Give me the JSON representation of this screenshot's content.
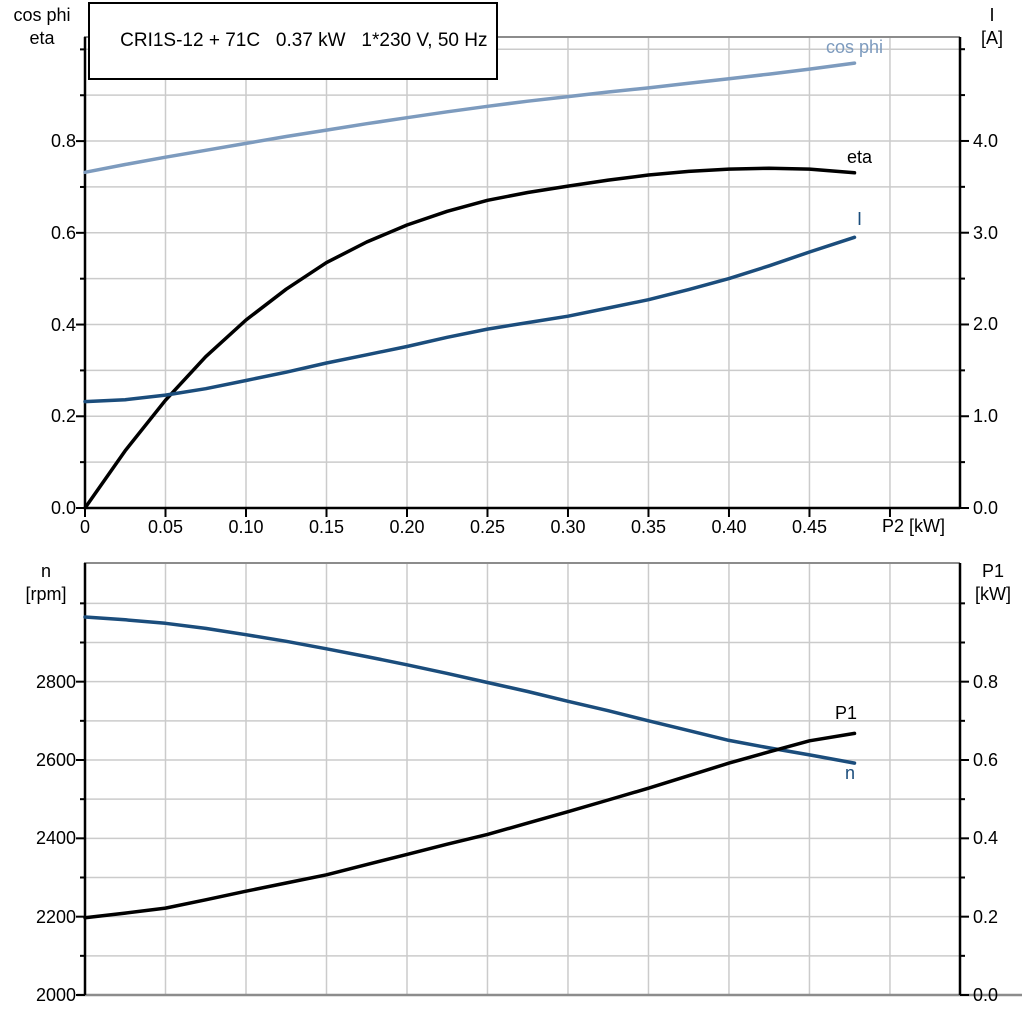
{
  "title": {
    "text": "CRI1S-12 + 71C   0.37 kW   1*230 V, 50 Hz"
  },
  "colors": {
    "curve_black": "#000000",
    "curve_dark_blue": "#1b4d7c",
    "curve_light_blue": "#7d9bbe",
    "grid": "#cbcbcb",
    "frame_gray": "#8c8c8c",
    "axis_black": "#000000",
    "background": "#ffffff"
  },
  "chart_data": [
    {
      "type": "line",
      "title": "",
      "grid": {
        "on": true,
        "x_values": [
          0.05,
          0.1,
          0.15,
          0.2,
          0.25,
          0.3,
          0.35,
          0.4,
          0.45,
          0.5
        ],
        "right_values": [
          0.5,
          1.0,
          1.5,
          2.0,
          2.5,
          3.0,
          3.5,
          4.0,
          4.5,
          5.0
        ]
      },
      "x_axis": {
        "label": "P2 [kW]",
        "min": 0,
        "max": 0.5435,
        "tick_values": [
          0,
          0.05,
          0.1,
          0.15,
          0.2,
          0.25,
          0.3,
          0.35,
          0.4,
          0.45,
          0.5
        ],
        "tick_labels": [
          "0",
          "0.05",
          "0.10",
          "0.15",
          "0.20",
          "0.25",
          "0.30",
          "0.35",
          "0.40",
          "0.45"
        ]
      },
      "left_axis": {
        "header_line1": "cos phi",
        "header_line2": "eta",
        "min": 0,
        "max": 1.027,
        "major_ticks": [
          0,
          0.2,
          0.4,
          0.6,
          0.8
        ],
        "major_labels": [
          "0.0",
          "0.2",
          "0.4",
          "0.6",
          "0.8"
        ],
        "minor_ticks": [
          0.1,
          0.3,
          0.5,
          0.7,
          0.9,
          1.0
        ]
      },
      "right_axis": {
        "header_line1": "I",
        "header_line2": "[A]",
        "min": 0,
        "max": 5.133,
        "major_ticks": [
          0,
          1,
          2,
          3,
          4
        ],
        "major_labels": [
          "0.0",
          "1.0",
          "2.0",
          "3.0",
          "4.0"
        ],
        "minor_ticks": [
          0.5,
          1.5,
          2.5,
          3.5,
          4.5,
          5.0
        ]
      },
      "series": [
        {
          "name": "cos phi",
          "label": "cos phi",
          "axis": "left",
          "color": "#7d9bbe",
          "x": [
            0,
            0.025,
            0.05,
            0.075,
            0.1,
            0.125,
            0.15,
            0.175,
            0.2,
            0.225,
            0.25,
            0.275,
            0.3,
            0.325,
            0.35,
            0.375,
            0.4,
            0.425,
            0.45,
            0.478
          ],
          "y": [
            0.732,
            0.749,
            0.765,
            0.78,
            0.795,
            0.81,
            0.824,
            0.838,
            0.851,
            0.864,
            0.876,
            0.887,
            0.897,
            0.907,
            0.916,
            0.926,
            0.936,
            0.946,
            0.957,
            0.97
          ]
        },
        {
          "name": "eta",
          "label": "eta",
          "axis": "left",
          "color": "#000000",
          "x": [
            0,
            0.025,
            0.05,
            0.075,
            0.1,
            0.125,
            0.15,
            0.175,
            0.2,
            0.225,
            0.25,
            0.275,
            0.3,
            0.325,
            0.35,
            0.375,
            0.4,
            0.425,
            0.45,
            0.478
          ],
          "y": [
            0.0,
            0.125,
            0.235,
            0.33,
            0.41,
            0.477,
            0.535,
            0.58,
            0.617,
            0.647,
            0.671,
            0.688,
            0.702,
            0.715,
            0.726,
            0.734,
            0.739,
            0.741,
            0.739,
            0.731
          ]
        },
        {
          "name": "I",
          "label": "I",
          "axis": "right",
          "color": "#1b4d7c",
          "x": [
            0,
            0.025,
            0.05,
            0.075,
            0.1,
            0.125,
            0.15,
            0.175,
            0.2,
            0.225,
            0.25,
            0.275,
            0.3,
            0.325,
            0.35,
            0.375,
            0.4,
            0.425,
            0.45,
            0.478
          ],
          "y": [
            1.16,
            1.18,
            1.23,
            1.3,
            1.39,
            1.48,
            1.58,
            1.67,
            1.76,
            1.86,
            1.95,
            2.02,
            2.09,
            2.18,
            2.27,
            2.38,
            2.5,
            2.64,
            2.79,
            2.95
          ]
        }
      ]
    },
    {
      "type": "line",
      "title": "",
      "grid": {
        "on": true,
        "x_values": [
          0.05,
          0.1,
          0.15,
          0.2,
          0.25,
          0.3,
          0.35,
          0.4,
          0.45,
          0.5
        ],
        "right_values": [
          0.1,
          0.2,
          0.3,
          0.4,
          0.5,
          0.6,
          0.7,
          0.8,
          0.9,
          1.0
        ]
      },
      "x_axis": {
        "label": "",
        "min": 0,
        "max": 0.5435,
        "tick_values": [],
        "tick_labels": []
      },
      "left_axis": {
        "header_line1": "n",
        "header_line2": "[rpm]",
        "min": 2000,
        "max": 3103,
        "major_ticks": [
          2000,
          2200,
          2400,
          2600,
          2800
        ],
        "major_labels": [
          "2000",
          "2200",
          "2400",
          "2600",
          "2800"
        ],
        "minor_ticks": [
          2100,
          2300,
          2500,
          2700,
          2900,
          3000
        ]
      },
      "right_axis": {
        "header_line1": "P1",
        "header_line2": "[kW]",
        "min": 0,
        "max": 1.103,
        "major_ticks": [
          0,
          0.2,
          0.4,
          0.6,
          0.8
        ],
        "major_labels": [
          "0.0",
          "0.2",
          "0.4",
          "0.6",
          "0.8"
        ],
        "minor_ticks": [
          0.1,
          0.3,
          0.5,
          0.7,
          0.9,
          1.0
        ]
      },
      "series": [
        {
          "name": "n",
          "label": "n",
          "axis": "left",
          "color": "#1b4d7c",
          "x": [
            0,
            0.025,
            0.05,
            0.075,
            0.1,
            0.125,
            0.15,
            0.175,
            0.2,
            0.225,
            0.25,
            0.275,
            0.3,
            0.325,
            0.35,
            0.375,
            0.4,
            0.425,
            0.45,
            0.478
          ],
          "y": [
            2965,
            2958,
            2949,
            2936,
            2920,
            2903,
            2884,
            2864,
            2843,
            2821,
            2798,
            2775,
            2750,
            2726,
            2700,
            2675,
            2650,
            2631,
            2613,
            2592
          ]
        },
        {
          "name": "P1",
          "label": "P1",
          "axis": "right",
          "color": "#000000",
          "x": [
            0,
            0.025,
            0.05,
            0.075,
            0.1,
            0.125,
            0.15,
            0.175,
            0.2,
            0.225,
            0.25,
            0.275,
            0.3,
            0.325,
            0.35,
            0.375,
            0.4,
            0.425,
            0.45,
            0.478
          ],
          "y": [
            0.197,
            0.209,
            0.222,
            0.243,
            0.265,
            0.286,
            0.307,
            0.333,
            0.359,
            0.385,
            0.41,
            0.439,
            0.468,
            0.498,
            0.528,
            0.56,
            0.592,
            0.621,
            0.649,
            0.668
          ]
        }
      ]
    }
  ]
}
